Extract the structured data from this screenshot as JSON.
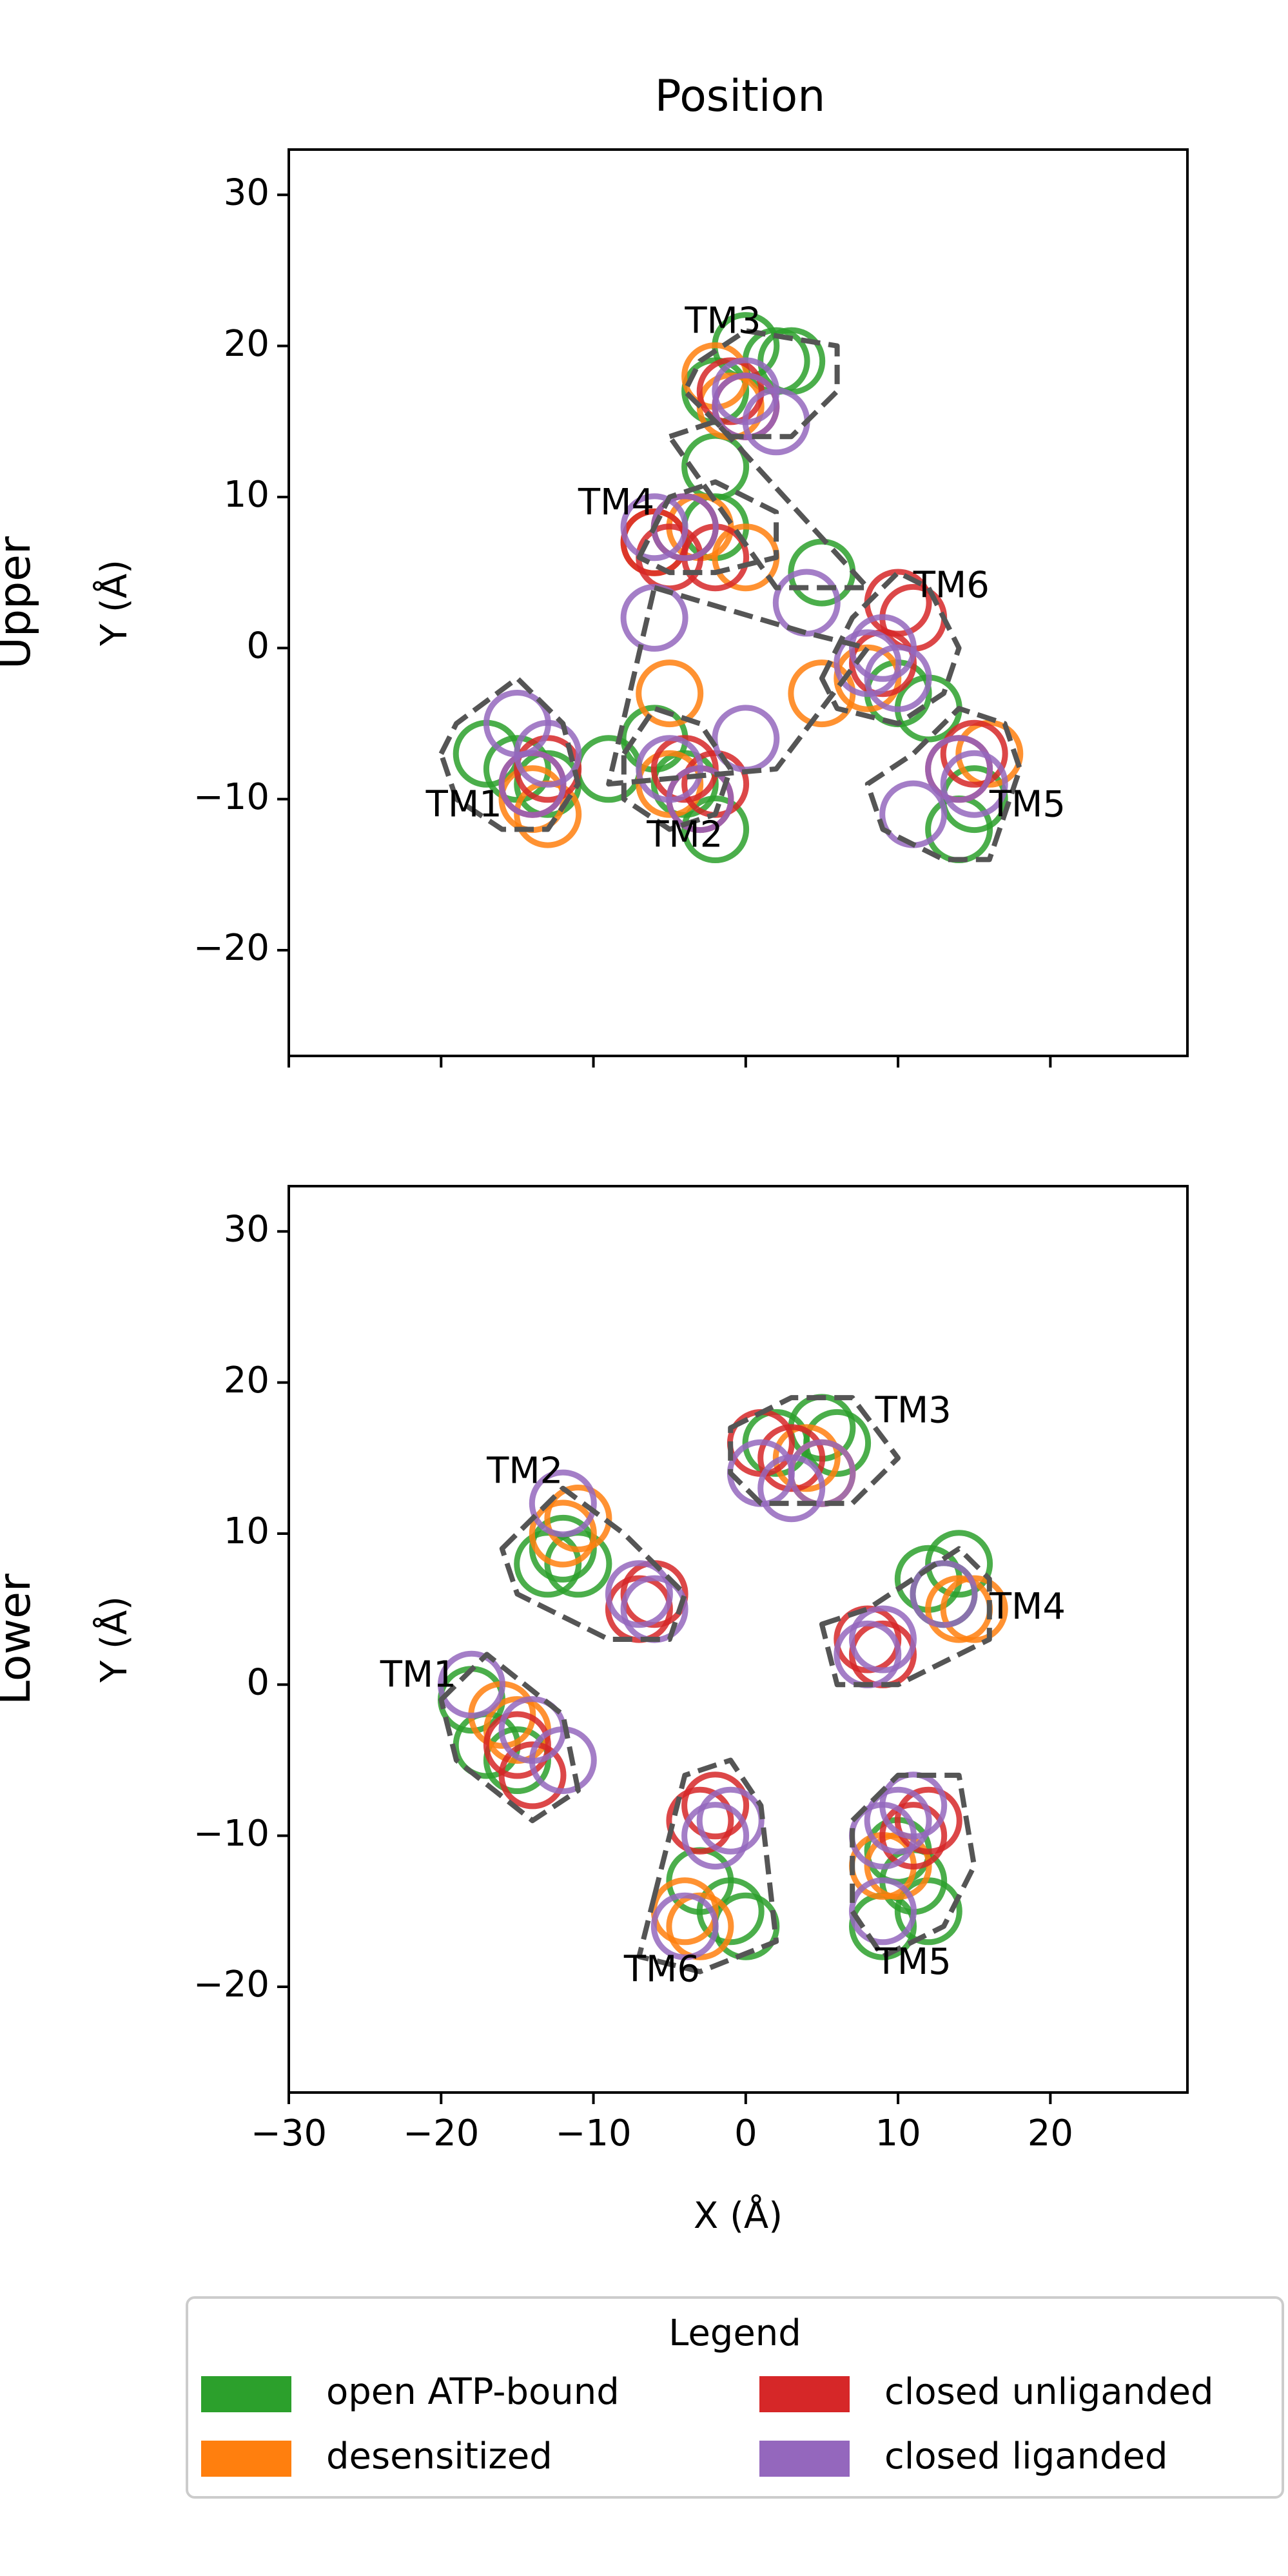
{
  "title": "Position",
  "legend": {
    "title": "Legend",
    "items": [
      {
        "label": "open ATP-bound",
        "color": "#2ca02c"
      },
      {
        "label": "desensitized",
        "color": "#ff7f0e"
      },
      {
        "label": "closed unliganded",
        "color": "#d62728"
      },
      {
        "label": "closed liganded",
        "color": "#9467bd"
      }
    ]
  },
  "chart_data": [
    {
      "type": "scatter",
      "panel": "Upper",
      "row_label": "Upper",
      "ylabel": "Y (Å)",
      "xlabel": "",
      "xlim": [
        -30,
        29
      ],
      "ylim": [
        -27,
        33
      ],
      "xticks": [
        -30,
        -20,
        -10,
        0,
        10,
        20
      ],
      "xtick_labels_visible": false,
      "yticks": [
        -20,
        -10,
        0,
        10,
        20,
        30
      ],
      "marker": "open circle",
      "series": [
        {
          "name": "open ATP-bound",
          "color": "#2ca02c",
          "points": [
            [
              -17,
              -7
            ],
            [
              -15,
              -8
            ],
            [
              -13,
              -9
            ],
            [
              -6,
              -6
            ],
            [
              -9,
              -8
            ],
            [
              -4,
              -9
            ],
            [
              -2,
              -12
            ],
            [
              0,
              20
            ],
            [
              2,
              19
            ],
            [
              3,
              19
            ],
            [
              -2,
              12
            ],
            [
              -4,
              8
            ],
            [
              -2,
              8
            ],
            [
              5,
              5
            ],
            [
              10,
              -3
            ],
            [
              12,
              -4
            ],
            [
              15,
              -10
            ],
            [
              14,
              -12
            ],
            [
              -2,
              17
            ]
          ]
        },
        {
          "name": "desensitized",
          "color": "#ff7f0e",
          "points": [
            [
              -14,
              -10
            ],
            [
              -13,
              -11
            ],
            [
              -5,
              -3
            ],
            [
              -5,
              -9
            ],
            [
              -2,
              18
            ],
            [
              -1,
              16
            ],
            [
              -3,
              8
            ],
            [
              0,
              6
            ],
            [
              5,
              -3
            ],
            [
              8,
              -2
            ],
            [
              16,
              -7
            ],
            [
              -6,
              7
            ]
          ]
        },
        {
          "name": "closed unliganded",
          "color": "#d62728",
          "points": [
            [
              -14,
              -9
            ],
            [
              -13,
              -8
            ],
            [
              -4,
              -8
            ],
            [
              -3,
              -10
            ],
            [
              0,
              16
            ],
            [
              -1,
              17
            ],
            [
              -6,
              7
            ],
            [
              -4,
              8
            ],
            [
              10,
              3
            ],
            [
              11,
              2
            ],
            [
              9,
              -1
            ],
            [
              14,
              -8
            ],
            [
              15,
              -7
            ],
            [
              -2,
              6
            ],
            [
              -5,
              6
            ],
            [
              -2,
              -9
            ]
          ]
        },
        {
          "name": "closed liganded",
          "color": "#9467bd",
          "points": [
            [
              -14,
              -9
            ],
            [
              -15,
              -5
            ],
            [
              -13,
              -7
            ],
            [
              -5,
              -8
            ],
            [
              -6,
              2
            ],
            [
              -3,
              -10
            ],
            [
              0,
              17
            ],
            [
              0,
              16
            ],
            [
              2,
              15
            ],
            [
              -4,
              8
            ],
            [
              -6,
              8
            ],
            [
              4,
              3
            ],
            [
              9,
              0
            ],
            [
              8,
              -1
            ],
            [
              10,
              -2
            ],
            [
              14,
              -8
            ],
            [
              15,
              -9
            ],
            [
              11,
              -11
            ],
            [
              0,
              -6
            ]
          ]
        }
      ],
      "annotations": [
        {
          "text": "TM3",
          "x": -1.5,
          "y": 21.5
        },
        {
          "text": "TM4",
          "x": -8.5,
          "y": 9.5
        },
        {
          "text": "TM6",
          "x": 13.5,
          "y": 4
        },
        {
          "text": "TM1",
          "x": -18.5,
          "y": -10.5
        },
        {
          "text": "TM2",
          "x": -4,
          "y": -12.5
        },
        {
          "text": "TM5",
          "x": 18.5,
          "y": -10.5
        }
      ],
      "outlines": [
        {
          "name": "TM3 hull",
          "points": [
            [
              -3,
              19
            ],
            [
              0,
              21
            ],
            [
              6,
              20
            ],
            [
              6,
              17
            ],
            [
              3,
              14
            ],
            [
              -1,
              14
            ],
            [
              -4,
              17
            ]
          ]
        },
        {
          "name": "TM4 hull",
          "points": [
            [
              -7,
              6
            ],
            [
              -5,
              10
            ],
            [
              -2,
              11
            ],
            [
              2,
              9
            ],
            [
              2,
              6
            ],
            [
              -2,
              5
            ],
            [
              -5,
              5
            ]
          ]
        },
        {
          "name": "TM6 hull",
          "points": [
            [
              5,
              -2
            ],
            [
              7,
              2
            ],
            [
              10,
              5
            ],
            [
              12,
              4
            ],
            [
              14,
              0
            ],
            [
              13,
              -3
            ],
            [
              10,
              -5
            ],
            [
              6,
              -4
            ]
          ]
        },
        {
          "name": "TM1 hull",
          "points": [
            [
              -20,
              -7
            ],
            [
              -19,
              -5
            ],
            [
              -15,
              -2
            ],
            [
              -12,
              -5
            ],
            [
              -11,
              -9
            ],
            [
              -13,
              -12
            ],
            [
              -16,
              -12
            ],
            [
              -19,
              -10
            ]
          ]
        },
        {
          "name": "TM2 hull",
          "points": [
            [
              -8,
              -7
            ],
            [
              -6,
              -4
            ],
            [
              -3,
              -5
            ],
            [
              -1,
              -8
            ],
            [
              -2,
              -11
            ],
            [
              -5,
              -12
            ],
            [
              -8,
              -10
            ]
          ]
        },
        {
          "name": "TM5 hull",
          "points": [
            [
              8,
              -9
            ],
            [
              11,
              -7
            ],
            [
              14,
              -4
            ],
            [
              17,
              -5
            ],
            [
              18,
              -8
            ],
            [
              16,
              -14
            ],
            [
              13,
              -14
            ],
            [
              9,
              -12
            ]
          ]
        },
        {
          "name": "central triangle",
          "points": [
            [
              -6,
              4
            ],
            [
              4,
              1
            ],
            [
              8,
              0
            ],
            [
              2,
              -8
            ],
            [
              -9,
              -9
            ]
          ]
        },
        {
          "name": "top triangle",
          "points": [
            [
              -5,
              14
            ],
            [
              -2,
              15
            ],
            [
              8,
              4
            ],
            [
              2,
              4
            ]
          ]
        }
      ]
    },
    {
      "type": "scatter",
      "panel": "Lower",
      "row_label": "Lower",
      "ylabel": "Y (Å)",
      "xlabel": "X (Å)",
      "xlim": [
        -30,
        29
      ],
      "ylim": [
        -27,
        33
      ],
      "xticks": [
        -30,
        -20,
        -10,
        0,
        10,
        20
      ],
      "xtick_labels_visible": true,
      "yticks": [
        -20,
        -10,
        0,
        10,
        20,
        30
      ],
      "marker": "open circle",
      "series": [
        {
          "name": "open ATP-bound",
          "color": "#2ca02c",
          "points": [
            [
              -18,
              -1
            ],
            [
              -17,
              -4
            ],
            [
              -15,
              -5
            ],
            [
              -13,
              8
            ],
            [
              -12,
              9
            ],
            [
              -11,
              8
            ],
            [
              -3,
              -13
            ],
            [
              -1,
              -15
            ],
            [
              0,
              -16
            ],
            [
              2,
              16
            ],
            [
              5,
              17
            ],
            [
              6,
              16
            ],
            [
              12,
              7
            ],
            [
              13,
              6
            ],
            [
              14,
              8
            ],
            [
              10,
              -11
            ],
            [
              11,
              -13
            ],
            [
              12,
              -15
            ],
            [
              9,
              -16
            ]
          ]
        },
        {
          "name": "desensitized",
          "color": "#ff7f0e",
          "points": [
            [
              -16,
              -2
            ],
            [
              -15,
              -3
            ],
            [
              -12,
              10
            ],
            [
              -11,
              11
            ],
            [
              -4,
              -15
            ],
            [
              -3,
              -16
            ],
            [
              4,
              15
            ],
            [
              5,
              14
            ],
            [
              14,
              5
            ],
            [
              15,
              5
            ],
            [
              9,
              -12
            ],
            [
              10,
              -12
            ]
          ]
        },
        {
          "name": "closed unliganded",
          "color": "#d62728",
          "points": [
            [
              -14,
              -6
            ],
            [
              -15,
              -4
            ],
            [
              -7,
              5
            ],
            [
              -6,
              6
            ],
            [
              -3,
              -9
            ],
            [
              -2,
              -8
            ],
            [
              1,
              16
            ],
            [
              3,
              15
            ],
            [
              8,
              3
            ],
            [
              9,
              2
            ],
            [
              12,
              -9
            ],
            [
              11,
              -10
            ]
          ]
        },
        {
          "name": "closed liganded",
          "color": "#9467bd",
          "points": [
            [
              -18,
              0
            ],
            [
              -14,
              -3
            ],
            [
              -12,
              -5
            ],
            [
              -12,
              12
            ],
            [
              -7,
              6
            ],
            [
              -6,
              5
            ],
            [
              -2,
              -10
            ],
            [
              -1,
              -9
            ],
            [
              -4,
              -16
            ],
            [
              1,
              14
            ],
            [
              3,
              13
            ],
            [
              5,
              14
            ],
            [
              8,
              2
            ],
            [
              9,
              3
            ],
            [
              13,
              6
            ],
            [
              10,
              -9
            ],
            [
              9,
              -10
            ],
            [
              9,
              -15
            ],
            [
              11,
              -8
            ]
          ]
        }
      ],
      "annotations": [
        {
          "text": "TM3",
          "x": 11,
          "y": 18
        },
        {
          "text": "TM2",
          "x": -14.5,
          "y": 14
        },
        {
          "text": "TM4",
          "x": 18.5,
          "y": 5
        },
        {
          "text": "TM1",
          "x": -21.5,
          "y": 0.5
        },
        {
          "text": "TM6",
          "x": -5.5,
          "y": -19
        },
        {
          "text": "TM5",
          "x": 11,
          "y": -18.5
        }
      ],
      "outlines": [
        {
          "name": "TM3 hull",
          "points": [
            [
              -1,
              17
            ],
            [
              3,
              19
            ],
            [
              7,
              19
            ],
            [
              10,
              15
            ],
            [
              7,
              12
            ],
            [
              1,
              12
            ],
            [
              -1,
              14
            ]
          ]
        },
        {
          "name": "TM2 hull",
          "points": [
            [
              -16,
              9
            ],
            [
              -12,
              13
            ],
            [
              -8,
              10
            ],
            [
              -4,
              6
            ],
            [
              -5,
              3
            ],
            [
              -9,
              3
            ],
            [
              -15,
              6
            ]
          ]
        },
        {
          "name": "TM4 hull",
          "points": [
            [
              5,
              4
            ],
            [
              8,
              5
            ],
            [
              14,
              9
            ],
            [
              16,
              7
            ],
            [
              16,
              3
            ],
            [
              10,
              0
            ],
            [
              6,
              0
            ]
          ]
        },
        {
          "name": "TM1 hull",
          "points": [
            [
              -20,
              -1
            ],
            [
              -17,
              2
            ],
            [
              -12,
              -2
            ],
            [
              -11,
              -7
            ],
            [
              -14,
              -9
            ],
            [
              -19,
              -5
            ]
          ]
        },
        {
          "name": "TM6 hull",
          "points": [
            [
              -6,
              -14
            ],
            [
              -4,
              -6
            ],
            [
              -1,
              -5
            ],
            [
              1,
              -8
            ],
            [
              2,
              -17
            ],
            [
              -3,
              -19
            ],
            [
              -7,
              -18
            ]
          ]
        },
        {
          "name": "TM5 hull",
          "points": [
            [
              7,
              -9
            ],
            [
              10,
              -6
            ],
            [
              14,
              -6
            ],
            [
              15,
              -12
            ],
            [
              13,
              -16
            ],
            [
              9,
              -18
            ],
            [
              7,
              -15
            ]
          ]
        }
      ]
    }
  ]
}
